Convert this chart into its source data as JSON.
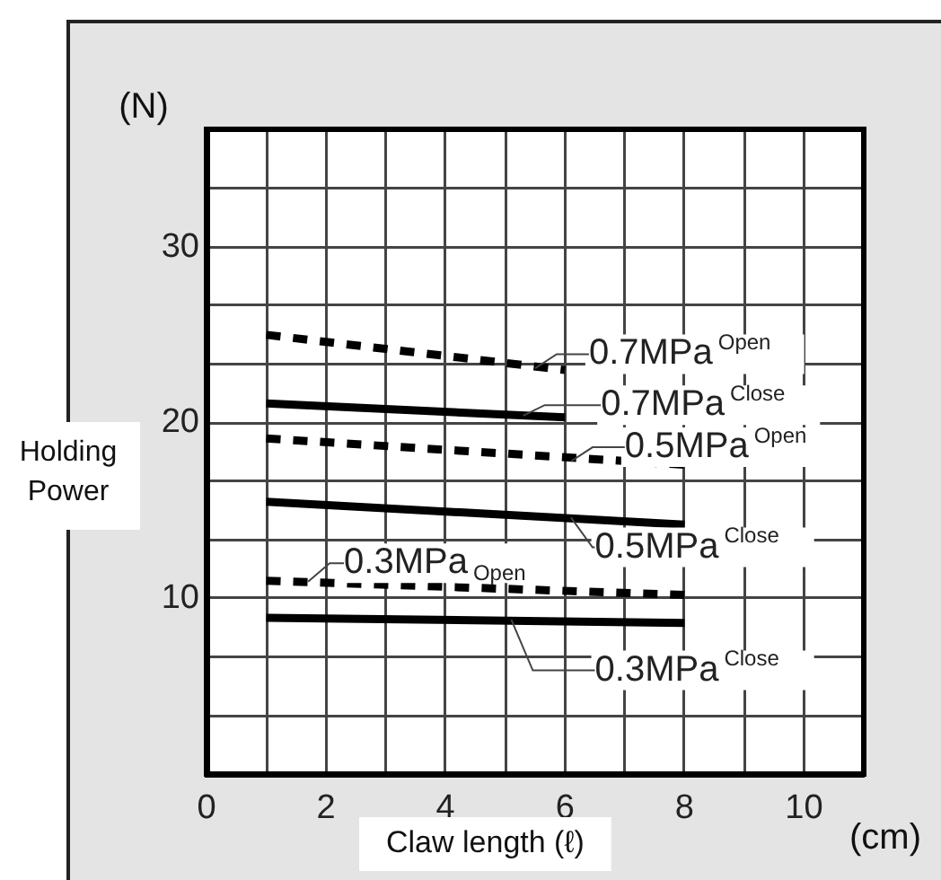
{
  "chart_data": {
    "type": "line",
    "ylabel": "Holding Power",
    "xlabel": "Claw length (ℓ)",
    "annotations": [
      "(N)",
      "(cm)"
    ],
    "xlim": [
      0,
      11
    ],
    "ylim": [
      0,
      36.7
    ],
    "xticks": [
      0,
      {
        "value": 1,
        "label": null
      },
      2,
      {
        "value": 3,
        "label": null
      },
      4,
      {
        "value": 5,
        "label": null
      },
      6,
      {
        "value": 7,
        "label": null
      },
      8,
      {
        "value": 9,
        "label": null
      },
      10
    ],
    "yticks": [
      {
        "value": 0,
        "label": null
      },
      {
        "value": 3.33,
        "label": null
      },
      {
        "value": 6.67,
        "label": null
      },
      10,
      {
        "value": 13.33,
        "label": null
      },
      {
        "value": 16.67,
        "label": null
      },
      20,
      {
        "value": 23.33,
        "label": null
      },
      {
        "value": 26.67,
        "label": null
      },
      30,
      {
        "value": 33.33,
        "label": null
      }
    ],
    "grid": true,
    "legend": false,
    "marker": "none",
    "series": [
      {
        "name": "0.7MPa$^{Open}$",
        "color": "#000000",
        "line_style": "dashed",
        "x": [
          1,
          6
        ],
        "values": [
          25,
          23
        ]
      },
      {
        "name": "0.7MPa$^{Close}$",
        "color": "#000000",
        "line_style": "solid",
        "x": [
          1,
          6
        ],
        "values": [
          21.1,
          20.3
        ]
      },
      {
        "name": "0.5MPa$^{Open}$",
        "color": "#000000",
        "line_style": "dashed",
        "x": [
          1,
          8
        ],
        "values": [
          19.1,
          17.6
        ]
      },
      {
        "name": "0.5MPa$^{Close}$",
        "color": "#000000",
        "line_style": "solid",
        "x": [
          1,
          8
        ],
        "values": [
          15.5,
          14.2
        ]
      },
      {
        "name": "0.3MPa$_{Open}$",
        "color": "#000000",
        "line_style": "dashed",
        "x": [
          1,
          8
        ],
        "values": [
          11,
          10.2
        ]
      },
      {
        "name": "0.3MPa$^{Close}$",
        "color": "#000000",
        "line_style": "solid",
        "x": [
          1,
          8
        ],
        "values": [
          8.9,
          8.6
        ]
      }
    ]
  }
}
